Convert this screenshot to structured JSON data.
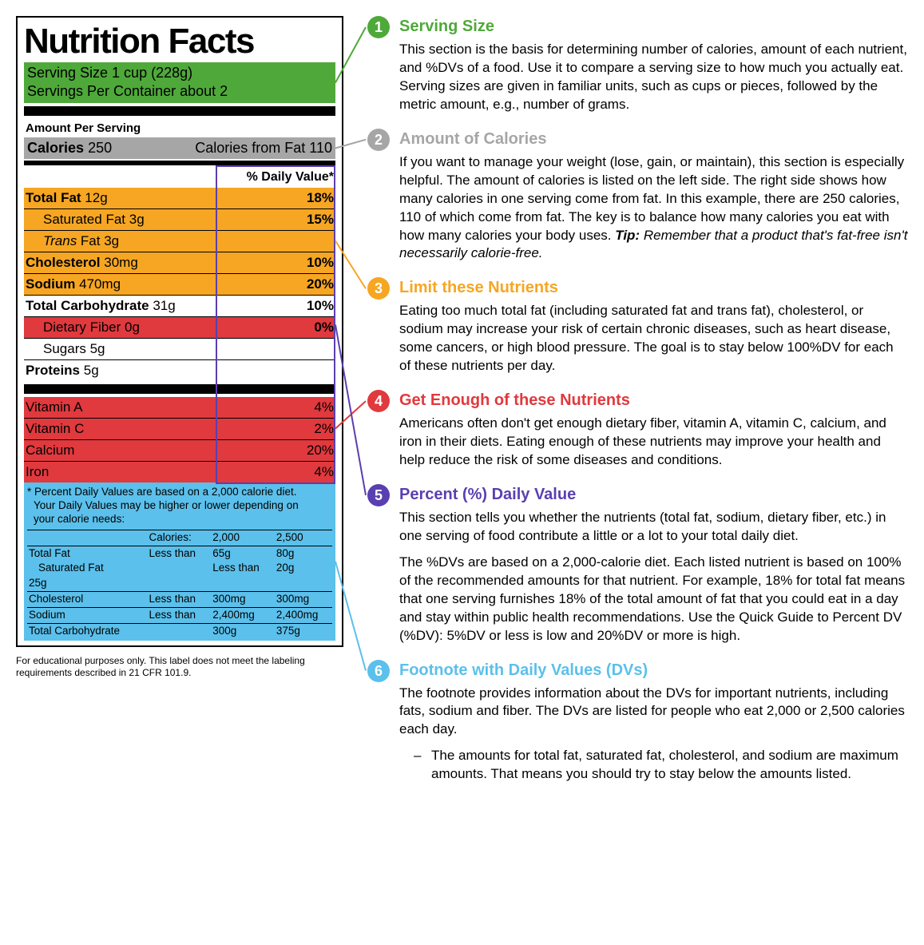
{
  "colors": {
    "green": "#4fa93a",
    "gray": "#a6a6a6",
    "orange": "#f6a623",
    "red": "#e0393e",
    "purple": "#5a3fb0",
    "blue": "#5bc0eb",
    "black": "#000000",
    "white": "#ffffff"
  },
  "label": {
    "title": "Nutrition Facts",
    "serving_size": "Serving Size 1 cup (228g)",
    "servings_per_container": "Servings Per Container about 2",
    "amount_per_serving": "Amount Per Serving",
    "calories_label": "Calories",
    "calories_value": "250",
    "calories_from_fat": "Calories from Fat 110",
    "dv_header": "% Daily Value*",
    "nutrients": [
      {
        "name": "Total Fat",
        "amount": "12g",
        "dv": "18%",
        "bold": true,
        "sub": false,
        "bg": "orange"
      },
      {
        "name": "Saturated Fat",
        "amount": "3g",
        "dv": "15%",
        "bold": false,
        "sub": true,
        "bg": "orange"
      },
      {
        "name": "Trans Fat",
        "amount": "3g",
        "dv": "",
        "bold": false,
        "sub": true,
        "bg": "orange",
        "italic_name": true
      },
      {
        "name": "Cholesterol",
        "amount": "30mg",
        "dv": "10%",
        "bold": true,
        "sub": false,
        "bg": "orange"
      },
      {
        "name": "Sodium",
        "amount": "470mg",
        "dv": "20%",
        "bold": true,
        "sub": false,
        "bg": "orange"
      },
      {
        "name": "Total Carbohydrate",
        "amount": "31g",
        "dv": "10%",
        "bold": true,
        "sub": false,
        "bg": ""
      },
      {
        "name": "Dietary Fiber",
        "amount": "0g",
        "dv": "0%",
        "bold": false,
        "sub": true,
        "bg": "red"
      },
      {
        "name": "Sugars",
        "amount": "5g",
        "dv": "",
        "bold": false,
        "sub": true,
        "bg": ""
      },
      {
        "name": "Proteins",
        "amount": "5g",
        "dv": "",
        "bold": true,
        "sub": false,
        "bg": ""
      }
    ],
    "vitamins": [
      {
        "name": "Vitamin A",
        "dv": "4%",
        "bg": "red"
      },
      {
        "name": "Vitamin C",
        "dv": "2%",
        "bg": "red"
      },
      {
        "name": "Calcium",
        "dv": "20%",
        "bg": "red"
      },
      {
        "name": "Iron",
        "dv": "4%",
        "bg": "red"
      }
    ],
    "footnote_star": "* Percent Daily Values are based on a 2,000 calorie diet.",
    "footnote_cont1": "Your Daily Values may be higher or lower depending on",
    "footnote_cont2": "your calorie needs:",
    "dv_table": {
      "header": [
        "",
        "Calories:",
        "2,000",
        "2,500"
      ],
      "rows": [
        [
          "Total Fat",
          "Less than",
          "65g",
          "80g"
        ],
        [
          "Saturated Fat",
          "",
          "Less than",
          "20g"
        ],
        [
          "25g",
          "",
          "",
          ""
        ],
        [
          "Cholesterol",
          "Less than",
          "300mg",
          "300mg"
        ],
        [
          "Sodium",
          "Less than",
          "2,400mg",
          "2,400mg"
        ],
        [
          "Total Carbohydrate",
          "",
          "300g",
          "375g"
        ]
      ]
    },
    "edu_note": "For educational purposes only. This label does not meet the labeling requirements described in 21 CFR 101.9."
  },
  "sections": [
    {
      "num": "1",
      "color": "green",
      "title": "Serving Size",
      "body": "This section is the basis for determining number of calories, amount of each nutrient, and %DVs of a food. Use it to compare a serving size to how much you actually eat. Serving sizes are given in familiar units, such as cups or pieces, followed by the metric amount, e.g., number of grams."
    },
    {
      "num": "2",
      "color": "gray",
      "title": "Amount of Calories",
      "body": "If you want to manage your weight (lose, gain, or maintain), this section is especially helpful. The amount of calories is listed on the left side. The right side shows how many calories in one serving come from fat. In this example, there are 250 calories, 110 of which come from fat. The key is to balance how many calories you eat with how many calories your body uses. ",
      "tip_label": "Tip:",
      "tip_body": " Remember that a product that's fat-free isn't necessarily calorie-free."
    },
    {
      "num": "3",
      "color": "orange",
      "title": "Limit these Nutrients",
      "body": "Eating too much total fat (including saturated fat and trans fat), cholesterol, or sodium may increase your risk of certain chronic diseases, such as heart disease, some cancers, or high blood pressure. The goal is to stay below 100%DV for each of these nutrients per day."
    },
    {
      "num": "4",
      "color": "red",
      "title": "Get Enough of these Nutrients",
      "body": "Americans often don't get enough dietary fiber, vitamin A, vitamin C, calcium, and iron in their diets. Eating enough of these nutrients may improve your health and help reduce the risk of some diseases and conditions."
    },
    {
      "num": "5",
      "color": "purple",
      "title": "Percent (%) Daily Value",
      "body": "This section tells you whether the nutrients (total fat, sodium, dietary fiber, etc.) in one serving of food contribute a little or a lot to your total daily diet.",
      "body2": "The %DVs are based on a 2,000-calorie diet. Each listed nutrient is based on 100% of the recommended amounts for that nutrient. For example, 18% for total fat means that one serving furnishes 18% of the total amount of fat that you could eat in a day and stay within public health recommendations. Use the Quick Guide to Percent DV (%DV): 5%DV or less is low and 20%DV or more is high."
    },
    {
      "num": "6",
      "color": "blue",
      "title": "Footnote with Daily Values (DVs)",
      "body": "The footnote provides information about the DVs for important nutrients, including fats, sodium and fiber. The DVs are listed for people who eat 2,000 or 2,500 calories each day.",
      "note": "The amounts for total fat, saturated fat, cholesterol, and sodium are maximum amounts. That means you should try to stay below the amounts listed."
    }
  ]
}
